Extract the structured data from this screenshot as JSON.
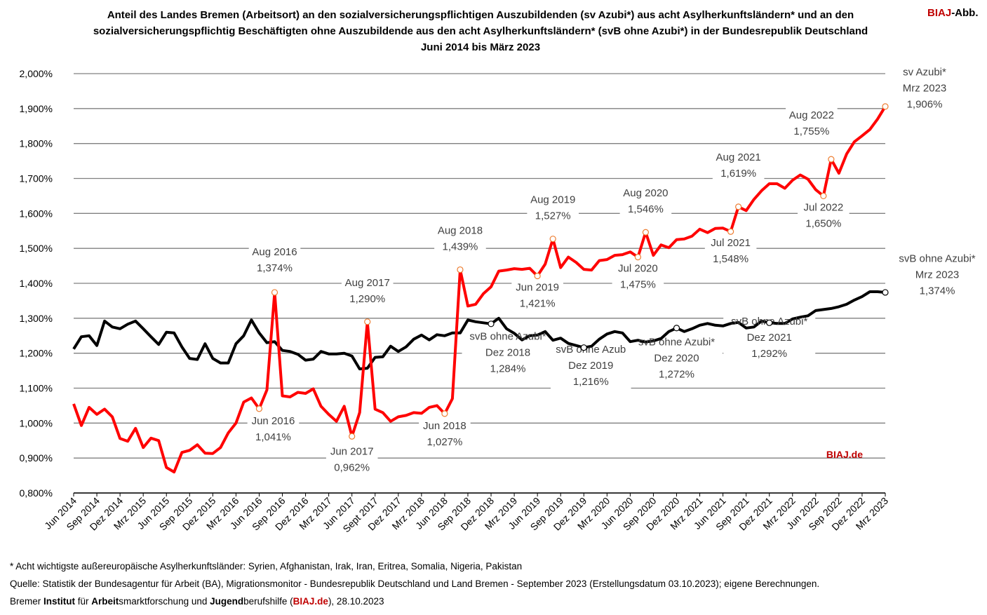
{
  "header": {
    "title_lines": [
      "Anteil des Landes Bremen (Arbeitsort) an den sozialversicherungspflichtigen Auszubildenden (sv Azubi*) aus acht Asylherkunftsländern* und an den",
      "sozialversicherungspflichtig Beschäftigten ohne Auszubildende aus den acht Asylherkunftsländern* (svB ohne Azubi*) in der Bundesrepublik Deutschland",
      "Juni 2014 bis März 2023"
    ],
    "brand_red": "BIAJ",
    "brand_rest": "-Abb."
  },
  "watermark": "BIAJ.de",
  "footer": {
    "note": "* Acht wichtigste außereuropäische Asylherkunftsländer: Syrien, Afghanistan, Irak, Iran, Eritrea, Somalia, Nigeria, Pakistan",
    "source": "Quelle: Statistik der Bundesagentur für Arbeit (BA), Migrationsmonitor - Bundesrepublik Deutschland und Land Bremen - September 2023 (Erstellungsdatum 03.10.2023); eigene Berechnungen.",
    "institute": {
      "w1": "Bremer ",
      "b1": "Institut",
      "w2": " für ",
      "b2": "Arbeit",
      "w3": "smarktforschung und ",
      "b3": "Jugend",
      "w4": "berufshilfe (",
      "red": "BIAJ.de",
      "w5": "), 28.10.2023"
    }
  },
  "chart_data": {
    "type": "line",
    "ylim": [
      0.8,
      2.0
    ],
    "yticks": [
      "0,800%",
      "0,900%",
      "1,000%",
      "1,100%",
      "1,200%",
      "1,300%",
      "1,400%",
      "1,500%",
      "1,600%",
      "1,700%",
      "1,800%",
      "1,900%",
      "2,000%"
    ],
    "x_labels": [
      "Jun 2014",
      "Sep 2014",
      "Dez 2014",
      "Mrz 2015",
      "Jun 2015",
      "Sep 2015",
      "Dez 2015",
      "Mrz 2016",
      "Jun 2016",
      "Sep 2016",
      "Dez 2016",
      "Mrz 2017",
      "Jun 2017",
      "Sept 2017",
      "Dez 2017",
      "Mrz 2018",
      "Jun 2018",
      "Sep 2018",
      "Dez 2018",
      "Mrz 2019",
      "Jun 2019",
      "Sep 2019",
      "Dez 2019",
      "Mrz 2020",
      "Jun 2020",
      "Sep 2020",
      "Dez 2020",
      "Mrz 2021",
      "Jun 2021",
      "Sep 2021",
      "Dez 2021",
      "Mrz 2022",
      "Jun 2022",
      "Sep 2022",
      "Dez 2022",
      "Mrz 2023"
    ],
    "grid": true,
    "colors": {
      "sv_azubi": "#ff0000",
      "svb_ohne_azubi": "#000000",
      "grid": "#808080",
      "marker_red": "#ed7d31"
    },
    "series": [
      {
        "key": "sv_azubi",
        "values": [
          1.055,
          0.993,
          1.045,
          1.025,
          1.04,
          1.018,
          0.956,
          0.948,
          0.985,
          0.93,
          0.957,
          0.95,
          0.873,
          0.86,
          0.916,
          0.922,
          0.938,
          0.914,
          0.913,
          0.93,
          0.972,
          1.0,
          1.06,
          1.072,
          1.041,
          1.095,
          1.374,
          1.078,
          1.075,
          1.088,
          1.085,
          1.098,
          1.048,
          1.025,
          1.005,
          1.048,
          0.962,
          1.03,
          1.29,
          1.04,
          1.03,
          1.005,
          1.018,
          1.022,
          1.03,
          1.028,
          1.045,
          1.05,
          1.027,
          1.07,
          1.439,
          1.335,
          1.34,
          1.37,
          1.39,
          1.435,
          1.438,
          1.442,
          1.44,
          1.443,
          1.421,
          1.455,
          1.527,
          1.445,
          1.475,
          1.46,
          1.44,
          1.438,
          1.465,
          1.468,
          1.48,
          1.482,
          1.49,
          1.475,
          1.546,
          1.48,
          1.51,
          1.502,
          1.525,
          1.527,
          1.535,
          1.555,
          1.545,
          1.557,
          1.558,
          1.548,
          1.619,
          1.608,
          1.64,
          1.665,
          1.685,
          1.685,
          1.672,
          1.695,
          1.71,
          1.698,
          1.668,
          1.65,
          1.755,
          1.715,
          1.77,
          1.805,
          1.822,
          1.84,
          1.87,
          1.906
        ]
      },
      {
        "key": "svb_ohne_azubi",
        "values": [
          1.212,
          1.247,
          1.25,
          1.222,
          1.292,
          1.275,
          1.27,
          1.283,
          1.292,
          1.27,
          1.247,
          1.225,
          1.26,
          1.258,
          1.218,
          1.185,
          1.182,
          1.227,
          1.185,
          1.172,
          1.172,
          1.227,
          1.25,
          1.295,
          1.258,
          1.23,
          1.233,
          1.208,
          1.205,
          1.197,
          1.18,
          1.183,
          1.205,
          1.198,
          1.198,
          1.2,
          1.192,
          1.155,
          1.157,
          1.188,
          1.19,
          1.22,
          1.205,
          1.218,
          1.24,
          1.252,
          1.238,
          1.253,
          1.25,
          1.258,
          1.258,
          1.295,
          1.29,
          1.287,
          1.284,
          1.3,
          1.27,
          1.257,
          1.238,
          1.25,
          1.252,
          1.262,
          1.237,
          1.243,
          1.228,
          1.222,
          1.216,
          1.22,
          1.24,
          1.255,
          1.262,
          1.258,
          1.233,
          1.237,
          1.232,
          1.235,
          1.242,
          1.262,
          1.272,
          1.262,
          1.27,
          1.28,
          1.285,
          1.28,
          1.278,
          1.285,
          1.288,
          1.272,
          1.275,
          1.292,
          1.287,
          1.285,
          1.285,
          1.298,
          1.303,
          1.307,
          1.322,
          1.325,
          1.328,
          1.333,
          1.34,
          1.352,
          1.362,
          1.376,
          1.376,
          1.374
        ]
      }
    ],
    "annotations": [
      {
        "series": "sv_azubi",
        "index": 24,
        "lines": [
          "Jun 2016",
          "1,041%"
        ],
        "dx": 20,
        "dy": 28
      },
      {
        "series": "sv_azubi",
        "index": 26,
        "lines": [
          "Aug 2016",
          "1,374%"
        ],
        "dx": 0,
        "dy": -47
      },
      {
        "series": "sv_azubi",
        "index": 36,
        "lines": [
          "Jun 2017",
          "0,962%"
        ],
        "dx": 0,
        "dy": 32
      },
      {
        "series": "sv_azubi",
        "index": 38,
        "lines": [
          "Aug 2017",
          "1,290%"
        ],
        "dx": 0,
        "dy": -45
      },
      {
        "series": "sv_azubi",
        "index": 48,
        "lines": [
          "Jun 2018",
          "1,027%"
        ],
        "dx": 0,
        "dy": 28
      },
      {
        "series": "sv_azubi",
        "index": 50,
        "lines": [
          "Aug 2018",
          "1,439%"
        ],
        "dx": 0,
        "dy": -45
      },
      {
        "series": "sv_azubi",
        "index": 60,
        "lines": [
          "Jun 2019",
          "1,421%"
        ],
        "dx": 0,
        "dy": 27
      },
      {
        "series": "sv_azubi",
        "index": 62,
        "lines": [
          "Aug 2019",
          "1,527%"
        ],
        "dx": 0,
        "dy": -45
      },
      {
        "series": "sv_azubi",
        "index": 73,
        "lines": [
          "Jul 2020",
          "1,475%"
        ],
        "dx": 0,
        "dy": 27
      },
      {
        "series": "sv_azubi",
        "index": 74,
        "lines": [
          "Aug 2020",
          "1,546%"
        ],
        "dx": 0,
        "dy": -45
      },
      {
        "series": "sv_azubi",
        "index": 85,
        "lines": [
          "Jul 2021",
          "1,548%"
        ],
        "dx": 0,
        "dy": 27
      },
      {
        "series": "sv_azubi",
        "index": 86,
        "lines": [
          "Aug 2021",
          "1,619%"
        ],
        "dx": 0,
        "dy": -60
      },
      {
        "series": "sv_azubi",
        "index": 97,
        "lines": [
          "Jul 2022",
          "1,650%"
        ],
        "dx": 0,
        "dy": 27
      },
      {
        "series": "sv_azubi",
        "index": 98,
        "lines": [
          "Aug 2022",
          "1,755%"
        ],
        "dx": -28,
        "dy": -52
      },
      {
        "series": "sv_azubi",
        "index": 105,
        "lines": [
          "sv Azubi*",
          "Mrz 2023",
          "1,906%"
        ],
        "dx": 56,
        "dy": -27
      },
      {
        "series": "svb_ohne_azubi",
        "index": 54,
        "lines": [
          "svB ohne Azubi*",
          "Dez 2018",
          "1,284%"
        ],
        "dx": 24,
        "dy": 40
      },
      {
        "series": "svb_ohne_azubi",
        "index": 66,
        "lines": [
          "svB ohne Azub",
          "Dez 2019",
          "1,216%"
        ],
        "dx": 10,
        "dy": 25
      },
      {
        "series": "svb_ohne_azubi",
        "index": 78,
        "lines": [
          "svB ohne Azubi*",
          "Dez 2020",
          "1,272%"
        ],
        "dx": 0,
        "dy": 42
      },
      {
        "series": "svb_ohne_azubi",
        "index": 90,
        "lines": [
          "svB ohne Azubi*",
          "Dez 2021",
          "1,292%"
        ],
        "dx": 0,
        "dy": 20
      },
      {
        "series": "svb_ohne_azubi",
        "index": 105,
        "lines": [
          "svB ohne Azubi*",
          "Mrz 2023",
          "1,374%"
        ],
        "dx": 74,
        "dy": -26
      }
    ]
  }
}
